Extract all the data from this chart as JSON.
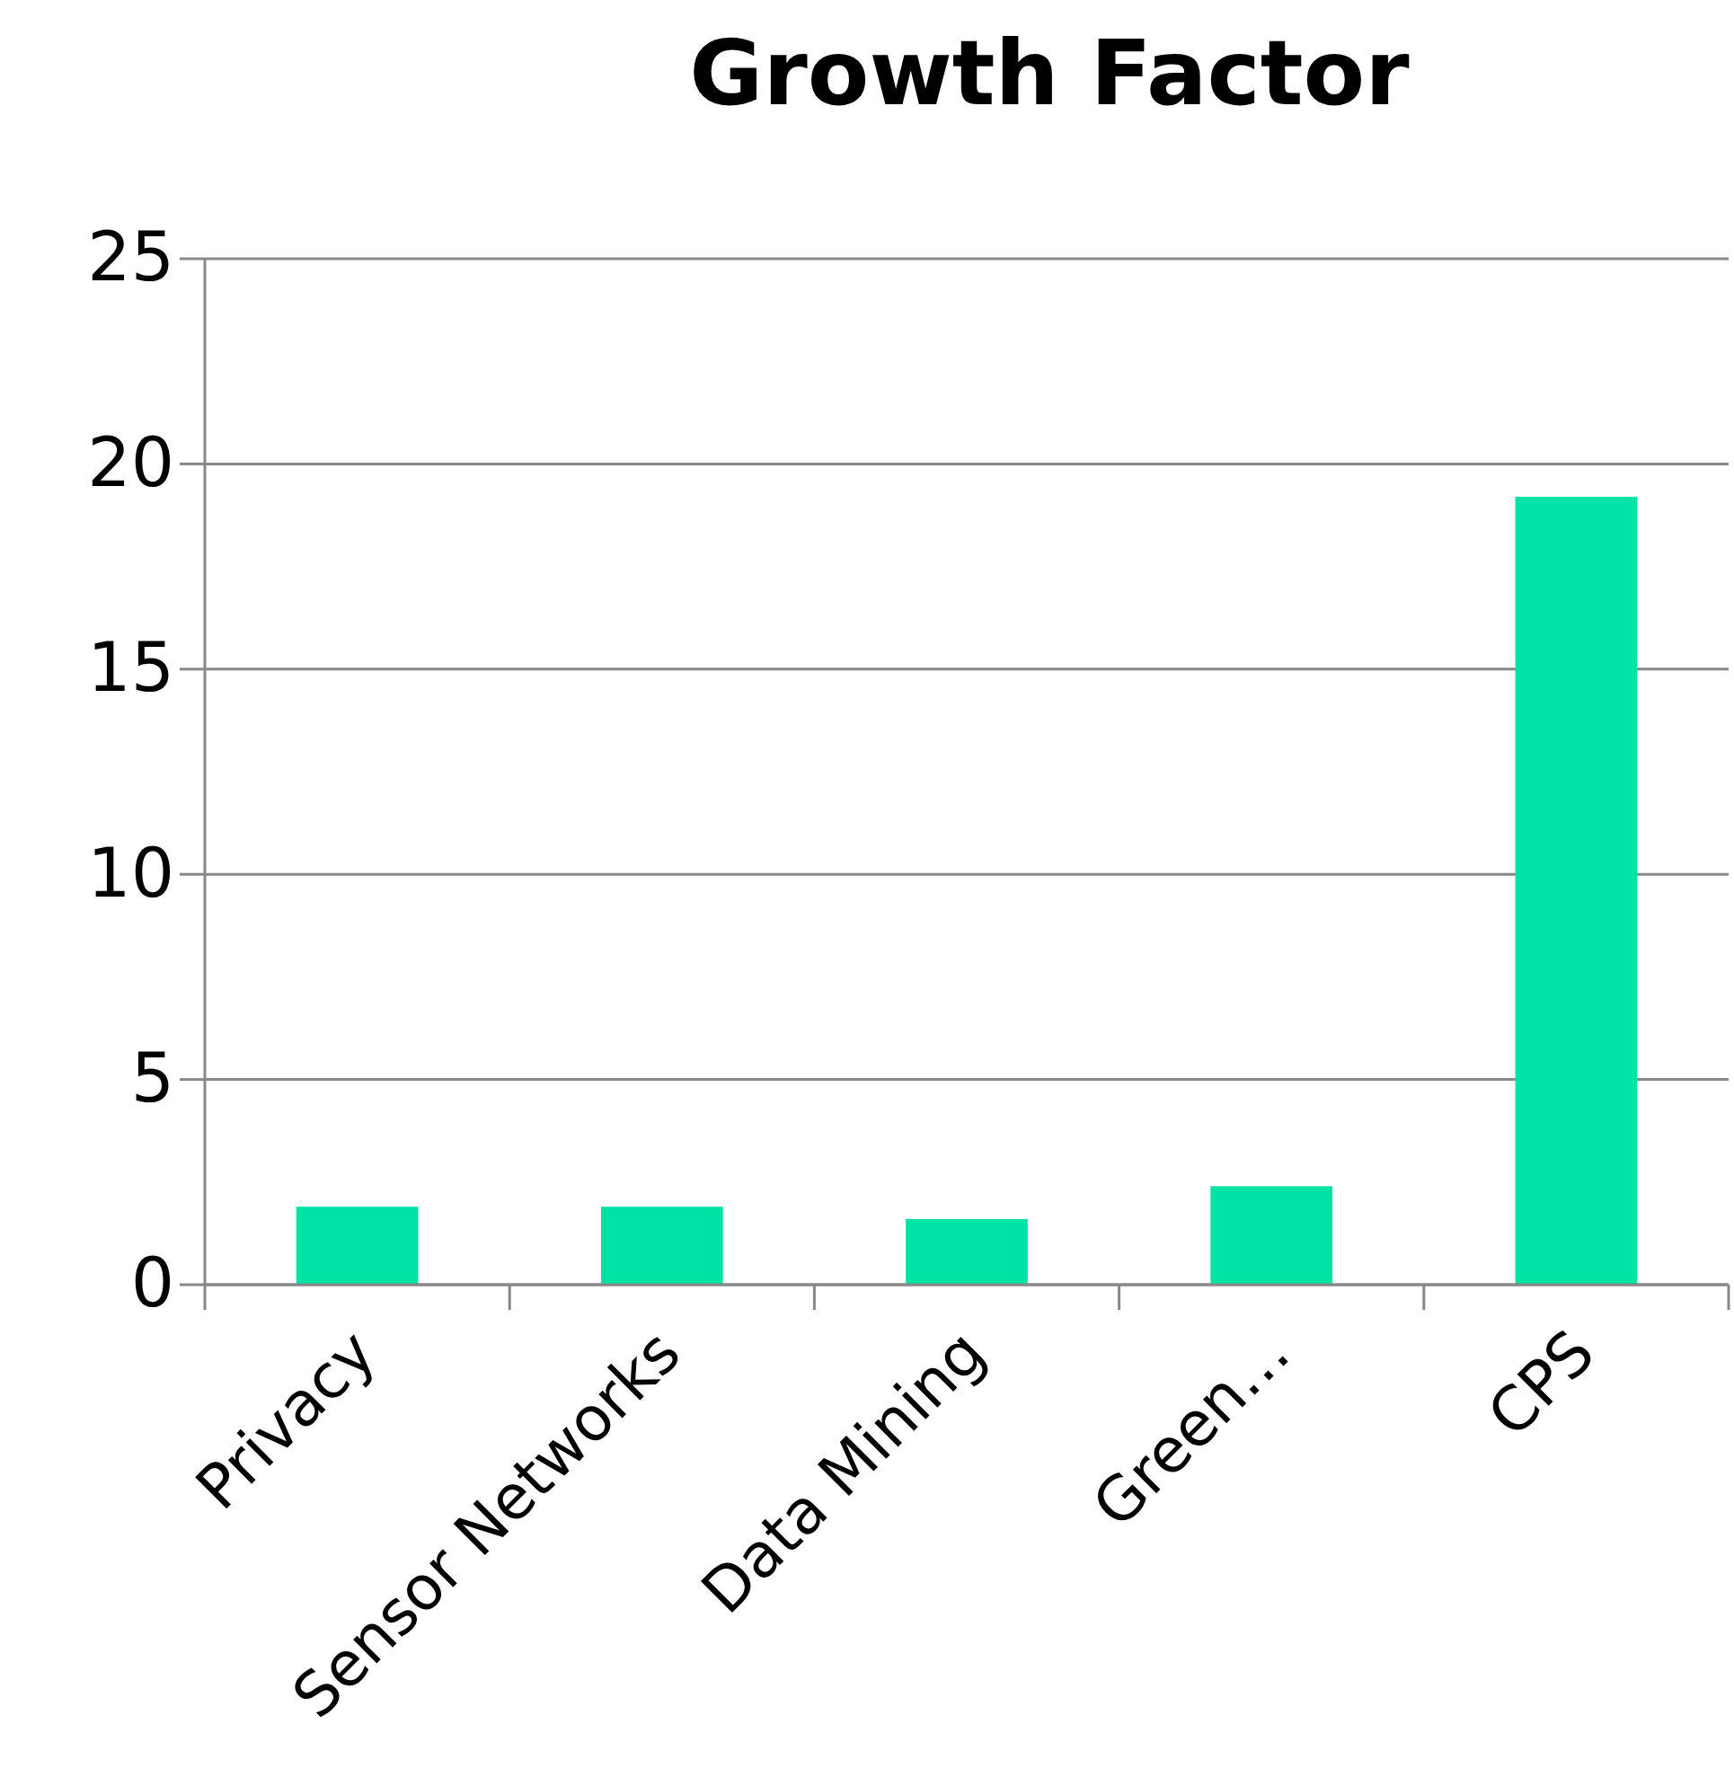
{
  "chart_data": {
    "type": "bar",
    "title": "Growth Factor",
    "categories": [
      "Privacy",
      "Sensor Networks",
      "Data Mining",
      "Green…",
      "CPS"
    ],
    "values": [
      1.9,
      1.9,
      1.6,
      2.4,
      19.2
    ],
    "color": "#00e3a6",
    "ylim": [
      0,
      25
    ],
    "yticks": [
      0,
      5,
      10,
      15,
      20,
      25
    ],
    "grid": "y"
  }
}
